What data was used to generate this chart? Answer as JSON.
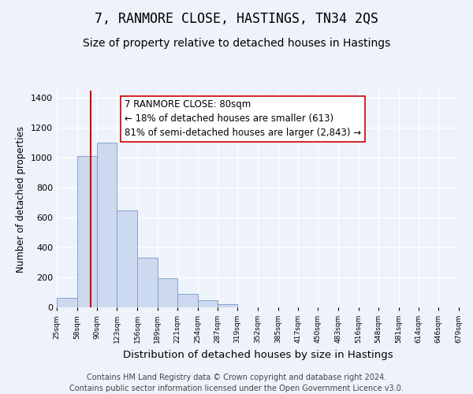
{
  "title": "7, RANMORE CLOSE, HASTINGS, TN34 2QS",
  "subtitle": "Size of property relative to detached houses in Hastings",
  "xlabel": "Distribution of detached houses by size in Hastings",
  "ylabel": "Number of detached properties",
  "bin_edges": [
    25,
    58,
    90,
    123,
    156,
    189,
    221,
    254,
    287,
    319,
    352,
    385,
    417,
    450,
    483,
    516,
    548,
    581,
    614,
    646,
    679
  ],
  "bar_heights": [
    65,
    1010,
    1100,
    650,
    330,
    195,
    90,
    47,
    20,
    0,
    0,
    0,
    0,
    0,
    0,
    0,
    0,
    0,
    0,
    0
  ],
  "tick_labels": [
    "25sqm",
    "58sqm",
    "90sqm",
    "123sqm",
    "156sqm",
    "189sqm",
    "221sqm",
    "254sqm",
    "287sqm",
    "319sqm",
    "352sqm",
    "385sqm",
    "417sqm",
    "450sqm",
    "483sqm",
    "516sqm",
    "548sqm",
    "581sqm",
    "614sqm",
    "646sqm",
    "679sqm"
  ],
  "bar_color": "#ccd9ee",
  "bar_edge_color": "#7799cc",
  "vline_x": 80,
  "vline_color": "#cc0000",
  "annotation_line1": "7 RANMORE CLOSE: 80sqm",
  "annotation_line2": "← 18% of detached houses are smaller (613)",
  "annotation_line3": "81% of semi-detached houses are larger (2,843) →",
  "ylim": [
    0,
    1450
  ],
  "yticks": [
    0,
    200,
    400,
    600,
    800,
    1000,
    1200,
    1400
  ],
  "bg_color": "#eef2fa",
  "plot_bg_color": "#eef2fa",
  "footer_text": "Contains HM Land Registry data © Crown copyright and database right 2024.\nContains public sector information licensed under the Open Government Licence v3.0.",
  "title_fontsize": 12,
  "subtitle_fontsize": 10,
  "xlabel_fontsize": 9.5,
  "ylabel_fontsize": 8.5,
  "annotation_fontsize": 8.5,
  "footer_fontsize": 7
}
